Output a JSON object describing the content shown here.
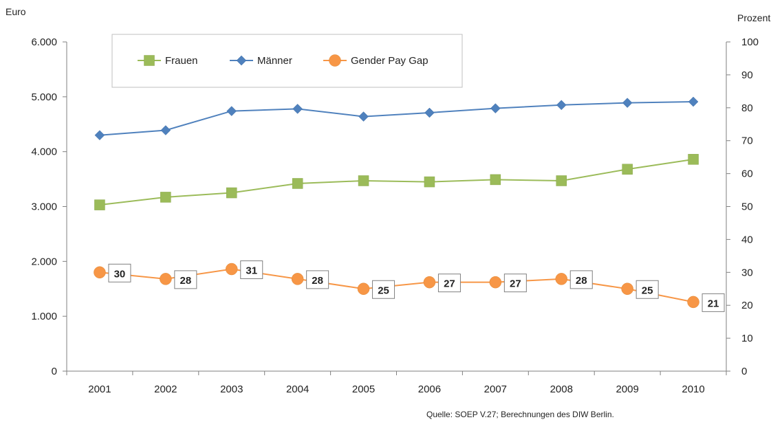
{
  "chart_data": {
    "type": "line",
    "categories": [
      "2001",
      "2002",
      "2003",
      "2004",
      "2005",
      "2006",
      "2007",
      "2008",
      "2009",
      "2010"
    ],
    "y_left_label": "Euro",
    "y_right_label": "Prozent",
    "y_left_ticks": [
      "0",
      "1.000",
      "2.000",
      "3.000",
      "4.000",
      "5.000",
      "6.000"
    ],
    "y_right_ticks": [
      "0",
      "10",
      "20",
      "30",
      "40",
      "50",
      "60",
      "70",
      "80",
      "90",
      "100"
    ],
    "ylim_left": [
      0,
      6000
    ],
    "ylim_right": [
      0,
      100
    ],
    "legend_position": "top-left",
    "grid": false,
    "series": [
      {
        "name": "Frauen",
        "axis": "left",
        "color": "#9bbb59",
        "marker": "square",
        "values": [
          3030,
          3170,
          3250,
          3420,
          3470,
          3450,
          3490,
          3470,
          3680,
          3860
        ]
      },
      {
        "name": "Männer",
        "axis": "left",
        "color": "#4f81bd",
        "marker": "diamond",
        "values": [
          4300,
          4390,
          4740,
          4780,
          4640,
          4710,
          4790,
          4850,
          4890,
          4910
        ]
      },
      {
        "name": "Gender Pay Gap",
        "axis": "right",
        "color": "#f79646",
        "marker": "circle",
        "values": [
          30,
          28,
          31,
          28,
          25,
          27,
          27,
          28,
          25,
          21
        ],
        "data_labels": [
          "30",
          "28",
          "31",
          "28",
          "25",
          "27",
          "27",
          "28",
          "25",
          "21"
        ]
      }
    ]
  },
  "source_text": "Quelle: SOEP V.27; Berechnungen des DIW Berlin."
}
